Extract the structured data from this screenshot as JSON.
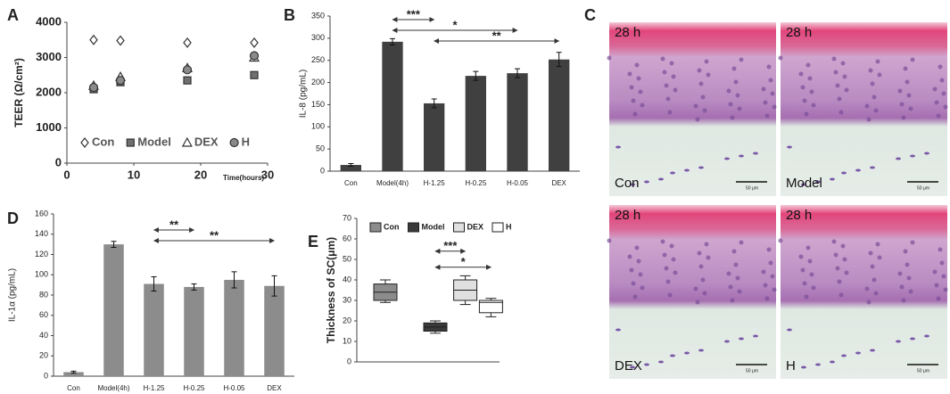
{
  "panel_labels": [
    "A",
    "B",
    "C",
    "D",
    "E"
  ],
  "chart_data": [
    {
      "type": "scatter",
      "ylabel": "TEER (Ω/cm²)",
      "xlabel": "Time(hours)",
      "xlim": [
        0,
        30
      ],
      "xticks": [
        0,
        10,
        20,
        30
      ],
      "ylim": [
        0,
        4000
      ],
      "yticks": [
        0,
        1000,
        2000,
        3000,
        4000
      ],
      "series": [
        {
          "name": "Con",
          "marker": "diamond",
          "color": "#ffffff",
          "x": [
            4,
            8,
            18,
            28
          ],
          "values": [
            3500,
            3480,
            3420,
            3420
          ]
        },
        {
          "name": "Model",
          "marker": "square",
          "color": "#707070",
          "x": [
            4,
            8,
            18,
            28
          ],
          "values": [
            2100,
            2300,
            2350,
            2500
          ]
        },
        {
          "name": "DEX",
          "marker": "triangle",
          "color": "#ffffff",
          "x": [
            4,
            8,
            18,
            28
          ],
          "values": [
            2200,
            2450,
            2700,
            3000
          ]
        },
        {
          "name": "H",
          "marker": "circle",
          "color": "#8a8a8a",
          "x": [
            4,
            8,
            18,
            28
          ],
          "values": [
            2150,
            2350,
            2650,
            3050
          ]
        }
      ]
    },
    {
      "type": "bar",
      "ylabel": "IL-8 (pg/mL)",
      "color": "#404040",
      "categories": [
        "Con",
        "Model(4h)",
        "H-1.25",
        "H-0.25",
        "H-0.05",
        "DEX"
      ],
      "values": [
        14,
        292,
        153,
        215,
        221,
        252
      ],
      "errors": [
        3,
        7,
        10,
        10,
        10,
        16
      ],
      "ylim": [
        0,
        350
      ],
      "yticks": [
        0,
        50,
        100,
        150,
        200,
        250,
        300,
        350
      ],
      "annotations": [
        {
          "text": "***",
          "from": "Model(4h)",
          "to": "H-1.25"
        },
        {
          "text": "*",
          "from": "Model(4h)",
          "to": "H-0.05"
        },
        {
          "text": "**",
          "from": "H-1.25",
          "to": "DEX"
        }
      ]
    },
    {
      "type": "bar",
      "ylabel": "IL-1α (pg/mL)",
      "color": "#8c8c8c",
      "categories": [
        "Con",
        "Model(4h)",
        "H-1.25",
        "H-0.25",
        "H-0.05",
        "DEX"
      ],
      "values": [
        4,
        130,
        91,
        88,
        95,
        89
      ],
      "errors": [
        1,
        3,
        7,
        3,
        8,
        10
      ],
      "ylim": [
        0,
        160
      ],
      "yticks": [
        0,
        20,
        40,
        60,
        80,
        100,
        120,
        140,
        160
      ],
      "annotations": [
        {
          "text": "**",
          "from": "H-1.25",
          "to": "H-0.25"
        },
        {
          "text": "**",
          "from": "H-1.25",
          "to": "DEX"
        }
      ]
    },
    {
      "type": "box",
      "ylabel": "Thickness of SC(μm)",
      "ylim": [
        0,
        70
      ],
      "yticks": [
        0,
        10,
        20,
        30,
        40,
        50,
        60,
        70
      ],
      "series": [
        {
          "name": "Con",
          "color": "#8c8c8c",
          "min": 29,
          "q1": 30,
          "median": 34,
          "q3": 38,
          "max": 40
        },
        {
          "name": "Model",
          "color": "#3a3a3a",
          "min": 14,
          "q1": 15,
          "median": 17,
          "q3": 19,
          "max": 20
        },
        {
          "name": "DEX",
          "color": "#e0e0e0",
          "min": 28,
          "q1": 30,
          "median": 35,
          "q3": 40,
          "max": 42
        },
        {
          "name": "H",
          "color": "#ffffff",
          "min": 22,
          "q1": 24,
          "median": 29,
          "q3": 30,
          "max": 31
        }
      ],
      "annotations": [
        {
          "text": "***",
          "from": "Model",
          "to": "DEX"
        },
        {
          "text": "*",
          "from": "Model",
          "to": "H"
        }
      ]
    }
  ],
  "micrographs": [
    {
      "time": "28 h",
      "label": "Con",
      "scale": "50 μm"
    },
    {
      "time": "28 h",
      "label": "Model",
      "scale": "50 μm"
    },
    {
      "time": "28 h",
      "label": "DEX",
      "scale": "50 μm"
    },
    {
      "time": "28 h",
      "label": "H",
      "scale": "50 μm"
    }
  ]
}
